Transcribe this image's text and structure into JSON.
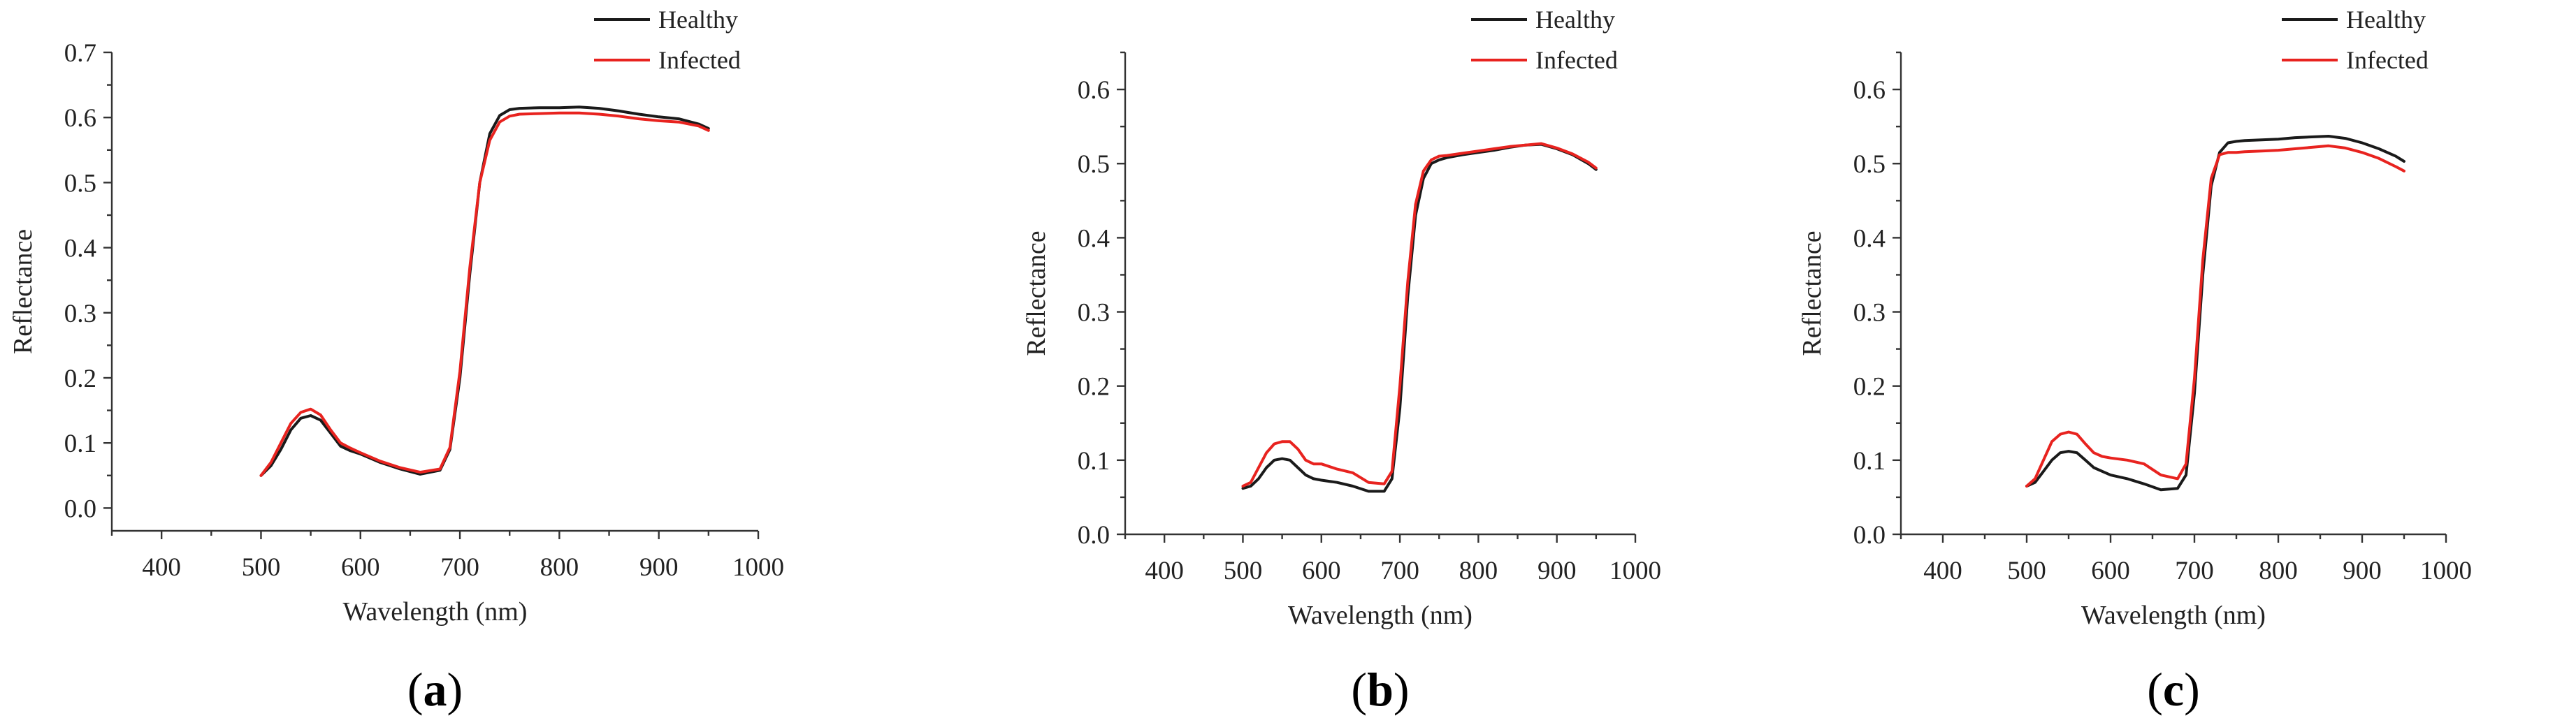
{
  "chart_data": [
    {
      "type": "line",
      "panel_label": "a",
      "xlabel": "Wavelength (nm)",
      "ylabel": "Reflectance",
      "xlim": [
        350,
        1000
      ],
      "ylim": [
        -0.035,
        0.7
      ],
      "xticks": [
        400,
        500,
        600,
        700,
        800,
        900,
        1000
      ],
      "yticks": [
        0.0,
        0.1,
        0.2,
        0.3,
        0.4,
        0.5,
        0.6,
        0.7
      ],
      "ytick_labels": [
        "0.0",
        "0.1",
        "0.2",
        "0.3",
        "0.4",
        "0.5",
        "0.6",
        "0.7"
      ],
      "legend": "top-right",
      "series": [
        {
          "name": "Healthy",
          "color": "#1a1a1a",
          "x": [
            500,
            510,
            520,
            530,
            540,
            550,
            560,
            570,
            580,
            590,
            600,
            620,
            640,
            660,
            680,
            690,
            700,
            710,
            720,
            730,
            740,
            750,
            760,
            780,
            800,
            820,
            840,
            860,
            880,
            900,
            920,
            940,
            950
          ],
          "y": [
            0.05,
            0.065,
            0.09,
            0.12,
            0.138,
            0.142,
            0.135,
            0.115,
            0.095,
            0.088,
            0.083,
            0.07,
            0.06,
            0.052,
            0.058,
            0.09,
            0.2,
            0.36,
            0.5,
            0.575,
            0.603,
            0.612,
            0.614,
            0.615,
            0.615,
            0.616,
            0.614,
            0.61,
            0.605,
            0.601,
            0.598,
            0.59,
            0.583
          ]
        },
        {
          "name": "Infected",
          "color": "#e8231f",
          "x": [
            500,
            510,
            520,
            530,
            540,
            550,
            560,
            570,
            580,
            590,
            600,
            620,
            640,
            660,
            680,
            690,
            700,
            710,
            720,
            730,
            740,
            750,
            760,
            780,
            800,
            820,
            840,
            860,
            880,
            900,
            920,
            940,
            950
          ],
          "y": [
            0.05,
            0.07,
            0.1,
            0.13,
            0.147,
            0.152,
            0.143,
            0.12,
            0.1,
            0.092,
            0.085,
            0.072,
            0.062,
            0.055,
            0.06,
            0.093,
            0.21,
            0.37,
            0.5,
            0.565,
            0.593,
            0.602,
            0.605,
            0.606,
            0.607,
            0.607,
            0.605,
            0.602,
            0.598,
            0.595,
            0.593,
            0.587,
            0.58
          ]
        }
      ]
    },
    {
      "type": "line",
      "panel_label": "b",
      "xlabel": "Wavelength (nm)",
      "ylabel": "Reflectance",
      "xlim": [
        350,
        1000
      ],
      "ylim": [
        0.0,
        0.65
      ],
      "xticks": [
        400,
        500,
        600,
        700,
        800,
        900,
        1000
      ],
      "yticks": [
        0.0,
        0.1,
        0.2,
        0.3,
        0.4,
        0.5,
        0.6
      ],
      "ytick_labels": [
        "0.0",
        "0.1",
        "0.2",
        "0.3",
        "0.4",
        "0.5",
        "0.6"
      ],
      "legend": "top-right",
      "series": [
        {
          "name": "Healthy",
          "color": "#1a1a1a",
          "x": [
            500,
            510,
            520,
            530,
            540,
            550,
            560,
            570,
            580,
            590,
            600,
            620,
            640,
            660,
            680,
            690,
            700,
            710,
            720,
            730,
            740,
            750,
            760,
            780,
            800,
            820,
            840,
            860,
            880,
            900,
            920,
            940,
            950
          ],
          "y": [
            0.062,
            0.065,
            0.075,
            0.09,
            0.1,
            0.102,
            0.1,
            0.09,
            0.08,
            0.075,
            0.073,
            0.07,
            0.065,
            0.058,
            0.058,
            0.075,
            0.17,
            0.32,
            0.43,
            0.48,
            0.5,
            0.505,
            0.508,
            0.512,
            0.515,
            0.518,
            0.522,
            0.525,
            0.526,
            0.52,
            0.512,
            0.5,
            0.492
          ]
        },
        {
          "name": "Infected",
          "color": "#e8231f",
          "x": [
            500,
            510,
            520,
            530,
            540,
            550,
            560,
            570,
            580,
            590,
            600,
            620,
            640,
            660,
            680,
            690,
            700,
            710,
            720,
            730,
            740,
            750,
            760,
            780,
            800,
            820,
            840,
            860,
            880,
            900,
            920,
            940,
            950
          ],
          "y": [
            0.065,
            0.07,
            0.09,
            0.11,
            0.122,
            0.125,
            0.125,
            0.115,
            0.1,
            0.095,
            0.095,
            0.088,
            0.083,
            0.07,
            0.068,
            0.085,
            0.2,
            0.34,
            0.445,
            0.49,
            0.505,
            0.51,
            0.511,
            0.514,
            0.517,
            0.52,
            0.523,
            0.525,
            0.527,
            0.521,
            0.513,
            0.502,
            0.494
          ]
        }
      ]
    },
    {
      "type": "line",
      "panel_label": "c",
      "xlabel": "Wavelength (nm)",
      "ylabel": "Reflectance",
      "xlim": [
        350,
        1000
      ],
      "ylim": [
        0.0,
        0.65
      ],
      "xticks": [
        400,
        500,
        600,
        700,
        800,
        900,
        1000
      ],
      "yticks": [
        0.0,
        0.1,
        0.2,
        0.3,
        0.4,
        0.5,
        0.6
      ],
      "ytick_labels": [
        "0.0",
        "0.1",
        "0.2",
        "0.3",
        "0.4",
        "0.5",
        "0.6"
      ],
      "legend": "top-right",
      "series": [
        {
          "name": "Healthy",
          "color": "#1a1a1a",
          "x": [
            500,
            510,
            520,
            530,
            540,
            550,
            560,
            570,
            580,
            590,
            600,
            620,
            640,
            660,
            680,
            690,
            700,
            710,
            720,
            730,
            740,
            750,
            760,
            780,
            800,
            820,
            840,
            860,
            880,
            900,
            920,
            940,
            950
          ],
          "y": [
            0.065,
            0.07,
            0.085,
            0.1,
            0.11,
            0.112,
            0.11,
            0.1,
            0.09,
            0.085,
            0.08,
            0.075,
            0.068,
            0.06,
            0.062,
            0.08,
            0.19,
            0.35,
            0.47,
            0.515,
            0.528,
            0.53,
            0.531,
            0.532,
            0.533,
            0.535,
            0.536,
            0.537,
            0.534,
            0.528,
            0.52,
            0.51,
            0.503
          ]
        },
        {
          "name": "Infected",
          "color": "#e8231f",
          "x": [
            500,
            510,
            520,
            530,
            540,
            550,
            560,
            570,
            580,
            590,
            600,
            620,
            640,
            660,
            680,
            690,
            700,
            710,
            720,
            730,
            740,
            750,
            760,
            780,
            800,
            820,
            840,
            860,
            880,
            900,
            920,
            940,
            950
          ],
          "y": [
            0.065,
            0.075,
            0.1,
            0.125,
            0.135,
            0.138,
            0.135,
            0.122,
            0.11,
            0.105,
            0.103,
            0.1,
            0.095,
            0.08,
            0.075,
            0.095,
            0.21,
            0.37,
            0.48,
            0.512,
            0.515,
            0.515,
            0.516,
            0.517,
            0.518,
            0.52,
            0.522,
            0.524,
            0.521,
            0.515,
            0.507,
            0.496,
            0.49
          ]
        }
      ]
    }
  ]
}
